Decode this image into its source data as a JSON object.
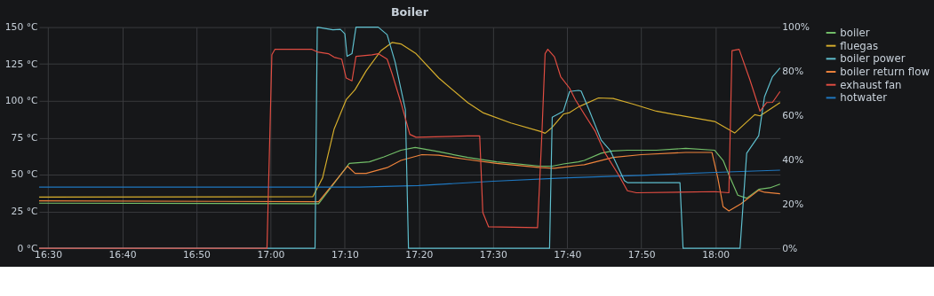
{
  "chart_data": {
    "type": "line",
    "title": "Boiler",
    "legend": "right",
    "grid": true,
    "line_style": "solid",
    "marker": "none",
    "xlim": [
      16.48,
      18.145
    ],
    "xticks": [
      {
        "value": 16.5,
        "label": "16:30"
      },
      {
        "value": 16.6667,
        "label": "16:40"
      },
      {
        "value": 16.8333,
        "label": "16:50"
      },
      {
        "value": 17.0,
        "label": "17:00"
      },
      {
        "value": 17.1667,
        "label": "17:10"
      },
      {
        "value": 17.3333,
        "label": "17:20"
      },
      {
        "value": 17.5,
        "label": "17:30"
      },
      {
        "value": 17.6667,
        "label": "17:40"
      },
      {
        "value": 17.8333,
        "label": "17:50"
      },
      {
        "value": 18.0,
        "label": "18:00"
      }
    ],
    "ylim": [
      0,
      150
    ],
    "yticks": [
      {
        "value": 0,
        "label": "0 °C"
      },
      {
        "value": 25,
        "label": "25 °C"
      },
      {
        "value": 50,
        "label": "50 °C"
      },
      {
        "value": 75,
        "label": "75 °C"
      },
      {
        "value": 100,
        "label": "100 °C"
      },
      {
        "value": 125,
        "label": "125 °C"
      },
      {
        "value": 150,
        "label": "150 °C"
      }
    ],
    "y2lim": [
      0,
      100
    ],
    "y2ticks": [
      {
        "value": 0,
        "label": "0%"
      },
      {
        "value": 20,
        "label": "20%"
      },
      {
        "value": 40,
        "label": "40%"
      },
      {
        "value": 60,
        "label": "60%"
      },
      {
        "value": 80,
        "label": "80%"
      },
      {
        "value": 100,
        "label": "100%"
      }
    ],
    "series": [
      {
        "name": "boiler",
        "color": "#73bf69",
        "x": [
          16.48,
          17.108,
          17.177,
          17.222,
          17.255,
          17.293,
          17.325,
          17.378,
          17.443,
          17.508,
          17.607,
          17.633,
          17.658,
          17.692,
          17.705,
          17.743,
          17.768,
          17.802,
          17.867,
          17.933,
          17.998,
          18.017,
          18.03,
          18.05,
          18.07,
          18.097,
          18.122,
          18.145
        ],
        "values": [
          30.6,
          30.2,
          57.6,
          58.6,
          62,
          66.5,
          68.4,
          65.5,
          61.6,
          58.6,
          55.7,
          55.7,
          57.2,
          58.6,
          59.6,
          64.5,
          66,
          66.5,
          66.5,
          67.8,
          66.5,
          59.6,
          49.8,
          36,
          34,
          40,
          41,
          43.5
        ]
      },
      {
        "name": "fluegas",
        "color": "#d6ae2c",
        "x": [
          16.48,
          17.095,
          17.117,
          17.143,
          17.17,
          17.19,
          17.215,
          17.248,
          17.273,
          17.293,
          17.327,
          17.378,
          17.443,
          17.477,
          17.54,
          17.607,
          17.617,
          17.633,
          17.658,
          17.672,
          17.692,
          17.737,
          17.77,
          17.815,
          17.867,
          17.933,
          17.998,
          18.043,
          18.088,
          18.1,
          18.145
        ],
        "values": [
          34.7,
          35,
          47.8,
          81,
          100.8,
          107.6,
          120.4,
          134,
          139.6,
          138.6,
          132,
          115.5,
          98.8,
          92,
          85,
          79.2,
          78,
          82,
          91,
          92,
          95.9,
          102,
          101.6,
          97.8,
          93,
          89.4,
          86,
          78.2,
          90.6,
          89.8,
          98.8
        ]
      },
      {
        "name": "boiler power",
        "axis": "y2",
        "color": "#5fc0cf",
        "x": [
          16.48,
          17.1,
          17.105,
          17.14,
          17.157,
          17.167,
          17.172,
          17.183,
          17.192,
          17.242,
          17.262,
          17.28,
          17.303,
          17.31,
          17.627,
          17.633,
          17.658,
          17.672,
          17.692,
          17.698,
          17.717,
          17.743,
          17.763,
          17.795,
          17.802,
          17.92,
          17.927,
          18.055,
          18.07,
          18.097,
          18.11,
          18.128,
          18.145
        ],
        "values": [
          0,
          0,
          100,
          98.8,
          99,
          97,
          86.8,
          88,
          100,
          100,
          96.6,
          84.2,
          62.6,
          0,
          0,
          59.3,
          62,
          70.9,
          71.4,
          71.1,
          62,
          48.9,
          44.3,
          30.6,
          29.7,
          29.7,
          0,
          0,
          43,
          50.9,
          68.5,
          77.6,
          81.6
        ]
      },
      {
        "name": "boiler return flow",
        "color": "#ef843c",
        "x": [
          16.48,
          17.108,
          17.173,
          17.19,
          17.215,
          17.262,
          17.293,
          17.34,
          17.378,
          17.443,
          17.508,
          17.607,
          17.638,
          17.658,
          17.692,
          17.705,
          17.77,
          17.833,
          17.933,
          17.992,
          18.005,
          18.017,
          18.03,
          18.057,
          18.097,
          18.11,
          18.145
        ],
        "values": [
          32.2,
          31.6,
          55.7,
          50.8,
          50.8,
          54.7,
          59.6,
          63.5,
          63.1,
          60.2,
          57.6,
          54.7,
          54.3,
          55,
          56.3,
          56.7,
          61.6,
          63.5,
          65,
          65,
          47.8,
          28.2,
          25.3,
          30.2,
          39.4,
          38,
          37
        ]
      },
      {
        "name": "exhaust fan",
        "axis": "y2",
        "color": "#e24d42",
        "x": [
          16.48,
          16.992,
          17.003,
          17.01,
          17.092,
          17.105,
          17.13,
          17.143,
          17.16,
          17.17,
          17.183,
          17.192,
          17.228,
          17.242,
          17.262,
          17.273,
          17.293,
          17.313,
          17.327,
          17.443,
          17.47,
          17.477,
          17.49,
          17.6,
          17.61,
          17.617,
          17.623,
          17.638,
          17.652,
          17.672,
          17.685,
          17.705,
          17.73,
          17.75,
          17.782,
          17.802,
          17.822,
          17.998,
          18.03,
          18.037,
          18.053,
          18.077,
          18.1,
          18.115,
          18.128,
          18.145
        ],
        "values": [
          0,
          0,
          87.5,
          90,
          90,
          88.8,
          88,
          86.4,
          85.5,
          77,
          75.7,
          86.8,
          87.5,
          88,
          85.5,
          79,
          65.9,
          51.5,
          50.2,
          50.8,
          50.8,
          16.2,
          9.7,
          9.3,
          52.8,
          88,
          90,
          86.6,
          77.6,
          72.4,
          67.2,
          60.7,
          52.8,
          43.6,
          33.2,
          26,
          25.1,
          25.6,
          25.1,
          89.4,
          90,
          76.3,
          62,
          65.9,
          66,
          70.9
        ]
      },
      {
        "name": "hotwater",
        "color": "#1f78c1",
        "x": [
          16.48,
          17.2,
          17.333,
          17.5,
          17.667,
          17.833,
          18.0,
          18.145
        ],
        "values": [
          41.5,
          41.5,
          42.5,
          45.5,
          47.8,
          49.5,
          51.5,
          53
        ]
      }
    ]
  }
}
